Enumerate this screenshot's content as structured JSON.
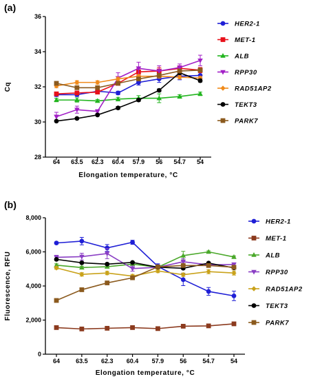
{
  "chart_data": [
    {
      "type": "line",
      "panel_label": "(a)",
      "title": "",
      "xlabel": "Elongation temperature, °C",
      "ylabel": "Cq",
      "categories": [
        "64",
        "63.5",
        "62.3",
        "60.4",
        "57.9",
        "56",
        "54.7",
        "54"
      ],
      "ylim": [
        28,
        36
      ],
      "yticks": [
        "28",
        "30",
        "32",
        "34",
        "36"
      ],
      "grid": false,
      "legend_position": "right",
      "series": [
        {
          "name": "HER2-1",
          "color": "#1f1fd6",
          "marker": "circle",
          "values": [
            31.55,
            31.55,
            31.75,
            31.65,
            32.25,
            32.45,
            32.6,
            32.65
          ],
          "err": [
            0.1,
            0.1,
            0.12,
            0.1,
            0.15,
            0.2,
            0.2,
            0.2
          ]
        },
        {
          "name": "MET-1",
          "color": "#e8101a",
          "marker": "square",
          "values": [
            31.6,
            31.65,
            31.7,
            32.2,
            32.85,
            32.9,
            33.05,
            32.95
          ],
          "err": [
            0.08,
            0.1,
            0.1,
            0.1,
            0.2,
            0.2,
            0.15,
            0.15
          ]
        },
        {
          "name": "ALB",
          "color": "#22b51f",
          "marker": "triangle",
          "values": [
            31.25,
            31.25,
            31.2,
            31.3,
            31.35,
            31.35,
            31.45,
            31.6
          ],
          "err": [
            0.1,
            0.12,
            0.08,
            0.1,
            0.15,
            0.25,
            0.1,
            0.1
          ]
        },
        {
          "name": "RPP30",
          "color": "#a21fc7",
          "marker": "triangle-down",
          "values": [
            30.3,
            30.7,
            30.6,
            32.5,
            33.05,
            32.9,
            33.1,
            33.5
          ],
          "err": [
            0.25,
            0.2,
            0.1,
            0.3,
            0.35,
            0.3,
            0.2,
            0.3
          ]
        },
        {
          "name": "RAD51AP2",
          "color": "#f08a1a",
          "marker": "diamond",
          "values": [
            32.05,
            32.25,
            32.25,
            32.45,
            32.6,
            32.6,
            32.55,
            32.5
          ],
          "err": [
            0.1,
            0.1,
            0.1,
            0.1,
            0.1,
            0.1,
            0.1,
            0.1
          ]
        },
        {
          "name": "TEKT3",
          "color": "#000000",
          "marker": "circle",
          "values": [
            30.05,
            30.2,
            30.4,
            30.8,
            31.25,
            31.8,
            32.8,
            32.35
          ],
          "err": [
            0.05,
            0.05,
            0.05,
            0.08,
            0.08,
            0.08,
            0.08,
            0.08
          ]
        },
        {
          "name": "PARK7",
          "color": "#8b5a1e",
          "marker": "square",
          "values": [
            32.2,
            31.95,
            31.95,
            32.2,
            32.45,
            32.65,
            32.9,
            32.95
          ],
          "err": [
            0.05,
            0.05,
            0.05,
            0.05,
            0.08,
            0.08,
            0.08,
            0.08
          ]
        }
      ]
    },
    {
      "type": "line",
      "panel_label": "(b)",
      "title": "",
      "xlabel": "Elongation temperature, °C",
      "ylabel": "Fluorescence, RFU",
      "categories": [
        "64",
        "63.5",
        "62.3",
        "60.4",
        "57.9",
        "56",
        "54.7",
        "54"
      ],
      "ylim": [
        0,
        8000
      ],
      "yticks": [
        "0",
        "2,000",
        "4,000",
        "6,000",
        "8,000"
      ],
      "grid": false,
      "legend_position": "right",
      "series": [
        {
          "name": "HER2-1",
          "color": "#1f1fd6",
          "marker": "circle",
          "values": [
            6520,
            6630,
            6230,
            6560,
            5150,
            4370,
            3680,
            3420
          ],
          "err": [
            60,
            220,
            200,
            120,
            150,
            350,
            230,
            280
          ]
        },
        {
          "name": "MET-1",
          "color": "#8b3a1e",
          "marker": "square",
          "values": [
            1560,
            1480,
            1520,
            1560,
            1500,
            1640,
            1660,
            1780
          ],
          "err": [
            40,
            40,
            40,
            40,
            40,
            60,
            40,
            40
          ]
        },
        {
          "name": "ALB",
          "color": "#4aa82a",
          "marker": "triangle",
          "values": [
            5220,
            5080,
            5130,
            5280,
            5100,
            5780,
            6000,
            5700
          ],
          "err": [
            80,
            80,
            80,
            80,
            100,
            250,
            60,
            60
          ]
        },
        {
          "name": "RPP30",
          "color": "#8a3ec4",
          "marker": "triangle-down",
          "values": [
            5680,
            5720,
            5900,
            5020,
            5100,
            5420,
            5240,
            5260
          ],
          "err": [
            120,
            200,
            300,
            150,
            100,
            180,
            150,
            100
          ]
        },
        {
          "name": "RAD51AP2",
          "color": "#c9a21a",
          "marker": "diamond",
          "values": [
            5060,
            4680,
            4760,
            4580,
            4880,
            4660,
            4840,
            4760
          ],
          "err": [
            80,
            100,
            100,
            100,
            100,
            100,
            120,
            120
          ]
        },
        {
          "name": "TEKT3",
          "color": "#000000",
          "marker": "circle",
          "values": [
            5560,
            5360,
            5280,
            5380,
            5100,
            5040,
            5340,
            5060
          ],
          "err": [
            60,
            60,
            60,
            60,
            60,
            60,
            60,
            60
          ]
        },
        {
          "name": "PARK7",
          "color": "#8b5a1e",
          "marker": "square",
          "values": [
            3150,
            3780,
            4180,
            4480,
            5120,
            5200,
            5200,
            5100
          ],
          "err": [
            40,
            40,
            40,
            40,
            40,
            40,
            40,
            40
          ]
        }
      ]
    }
  ]
}
